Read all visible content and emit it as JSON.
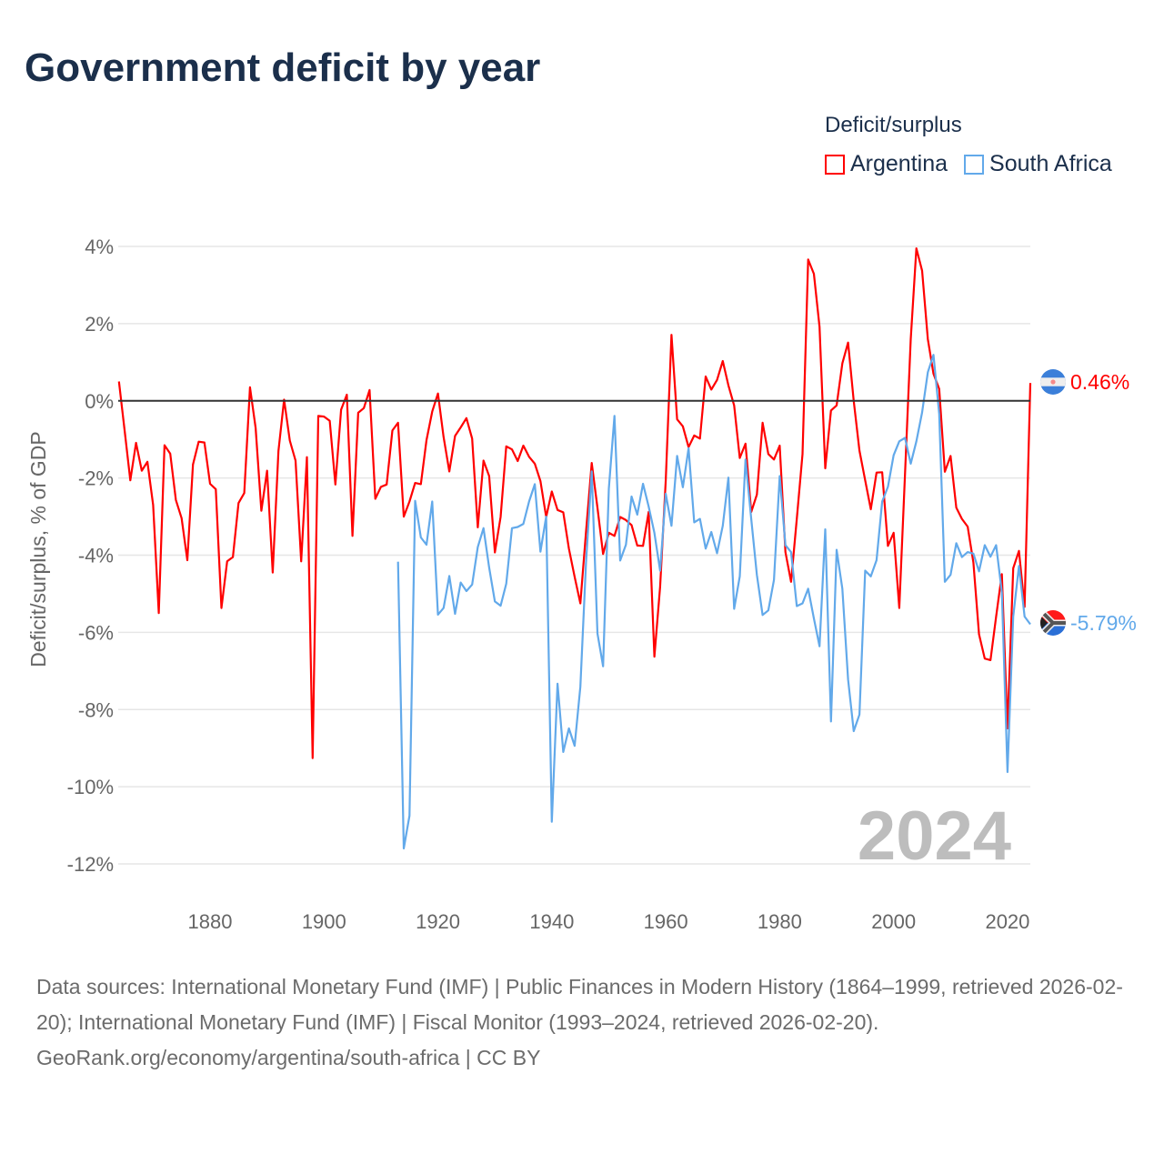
{
  "title": "Government deficit by year",
  "legend": {
    "title": "Deficit/surplus",
    "items": [
      {
        "name": "Argentina",
        "color": "#ff0000"
      },
      {
        "name": "South Africa",
        "color": "#62a9ea"
      }
    ]
  },
  "footer": {
    "sources": "Data sources: International Monetary Fund (IMF) | Public Finances in Modern History (1864–1999, retrieved 2026-02-20); International Monetary Fund (IMF) | Fiscal Monitor (1993–2024, retrieved 2026-02-20).",
    "credit": "GeoRank.org/economy/argentina/south-africa | CC BY"
  },
  "chart_data": {
    "type": "line",
    "title": "Government deficit by year",
    "xlabel": "",
    "ylabel": "Deficit/surplus, % of GDP",
    "xlim": [
      1864,
      2024
    ],
    "ylim": [
      -12,
      4
    ],
    "x_ticks": [
      1880,
      1900,
      1920,
      1940,
      1960,
      1980,
      2000,
      2020
    ],
    "y_ticks": [
      4,
      2,
      0,
      -2,
      -4,
      -6,
      -8,
      -10,
      -12
    ],
    "y_tick_labels": [
      "4%",
      "2%",
      "0%",
      "-2%",
      "-4%",
      "-6%",
      "-8%",
      "-10%",
      "-12%"
    ],
    "x_tick_labels": [
      "1880",
      "1900",
      "1920",
      "1940",
      "1960",
      "1980",
      "2000",
      "2020"
    ],
    "grid": true,
    "legend_position": "top-right",
    "year_watermark": "2024",
    "series": [
      {
        "name": "Argentina",
        "color": "#ff0000",
        "end_label": "0.46%",
        "start_year": 1864,
        "values": [
          0.5,
          -0.78,
          -2.06,
          -1.09,
          -1.81,
          -1.58,
          -2.7,
          -5.5,
          -1.15,
          -1.37,
          -2.57,
          -3.04,
          -4.13,
          -1.65,
          -1.06,
          -1.08,
          -2.15,
          -2.29,
          -5.37,
          -4.16,
          -4.05,
          -2.65,
          -2.39,
          0.35,
          -0.7,
          -2.85,
          -1.81,
          -4.45,
          -1.3,
          0.03,
          -1.03,
          -1.55,
          -4.16,
          -1.46,
          -9.26,
          -0.39,
          -0.41,
          -0.52,
          -2.17,
          -0.23,
          0.16,
          -3.5,
          -0.31,
          -0.19,
          0.28,
          -2.54,
          -2.23,
          -2.17,
          -0.77,
          -0.57,
          -3.0,
          -2.61,
          -2.13,
          -2.16,
          -1.02,
          -0.28,
          0.19,
          -0.94,
          -1.83,
          -0.91,
          -0.69,
          -0.45,
          -0.98,
          -3.28,
          -1.55,
          -1.95,
          -3.93,
          -3.01,
          -1.18,
          -1.26,
          -1.56,
          -1.16,
          -1.45,
          -1.63,
          -2.08,
          -3.01,
          -2.35,
          -2.83,
          -2.89,
          -3.83,
          -4.56,
          -5.25,
          -3.4,
          -1.61,
          -2.77,
          -3.97,
          -3.42,
          -3.5,
          -3.01,
          -3.09,
          -3.22,
          -3.75,
          -3.76,
          -2.88,
          -6.63,
          -4.82,
          -2.06,
          1.71,
          -0.48,
          -0.66,
          -1.2,
          -0.9,
          -0.98,
          0.63,
          0.29,
          0.54,
          1.03,
          0.4,
          -0.12,
          -1.48,
          -1.11,
          -2.88,
          -2.43,
          -0.57,
          -1.38,
          -1.52,
          -1.16,
          -3.92,
          -4.69,
          -3.06,
          -1.38,
          3.66,
          3.29,
          1.92,
          -1.75,
          -0.25,
          -0.12,
          0.97,
          1.51,
          0.0,
          -1.29,
          -2.06,
          -2.81,
          -1.86,
          -1.85,
          -3.76,
          -3.42,
          -5.37,
          -1.9,
          1.6,
          3.95,
          3.37,
          1.6,
          0.7,
          0.31,
          -1.84,
          -1.43,
          -2.77,
          -3.06,
          -3.26,
          -4.19,
          -6.05,
          -6.68,
          -6.72,
          -5.59,
          -4.49,
          -8.49,
          -4.34,
          -3.89,
          -5.34,
          0.46
        ]
      },
      {
        "name": "South Africa",
        "color": "#62a9ea",
        "end_label": "-5.79%",
        "start_year": 1913,
        "values": [
          -4.17,
          -11.6,
          -10.75,
          -2.59,
          -3.54,
          -3.73,
          -2.61,
          -5.54,
          -5.37,
          -4.54,
          -5.52,
          -4.71,
          -4.93,
          -4.76,
          -3.79,
          -3.3,
          -4.32,
          -5.2,
          -5.31,
          -4.74,
          -3.3,
          -3.27,
          -3.19,
          -2.61,
          -2.16,
          -3.91,
          -3.0,
          -10.91,
          -7.33,
          -9.1,
          -8.49,
          -8.94,
          -7.41,
          -4.2,
          -1.83,
          -6.03,
          -6.88,
          -2.28,
          -0.39,
          -4.14,
          -3.73,
          -2.48,
          -2.95,
          -2.15,
          -2.74,
          -3.42,
          -4.4,
          -2.41,
          -3.24,
          -1.43,
          -2.24,
          -1.23,
          -3.15,
          -3.06,
          -3.83,
          -3.4,
          -3.95,
          -3.24,
          -1.99,
          -5.39,
          -4.55,
          -1.52,
          -3.06,
          -4.51,
          -5.55,
          -5.43,
          -4.64,
          -1.95,
          -3.74,
          -3.92,
          -5.32,
          -5.25,
          -4.87,
          -5.64,
          -6.36,
          -3.33,
          -8.31,
          -3.86,
          -4.87,
          -7.22,
          -8.56,
          -8.13,
          -4.4,
          -4.55,
          -4.13,
          -2.61,
          -2.23,
          -1.41,
          -1.05,
          -0.96,
          -1.63,
          -1.05,
          -0.3,
          0.74,
          1.19,
          -0.34,
          -4.69,
          -4.51,
          -3.69,
          -4.05,
          -3.92,
          -3.96,
          -4.42,
          -3.74,
          -4.04,
          -3.74,
          -4.96,
          -9.62,
          -5.59,
          -4.28,
          -5.59,
          -5.79
        ]
      }
    ]
  }
}
